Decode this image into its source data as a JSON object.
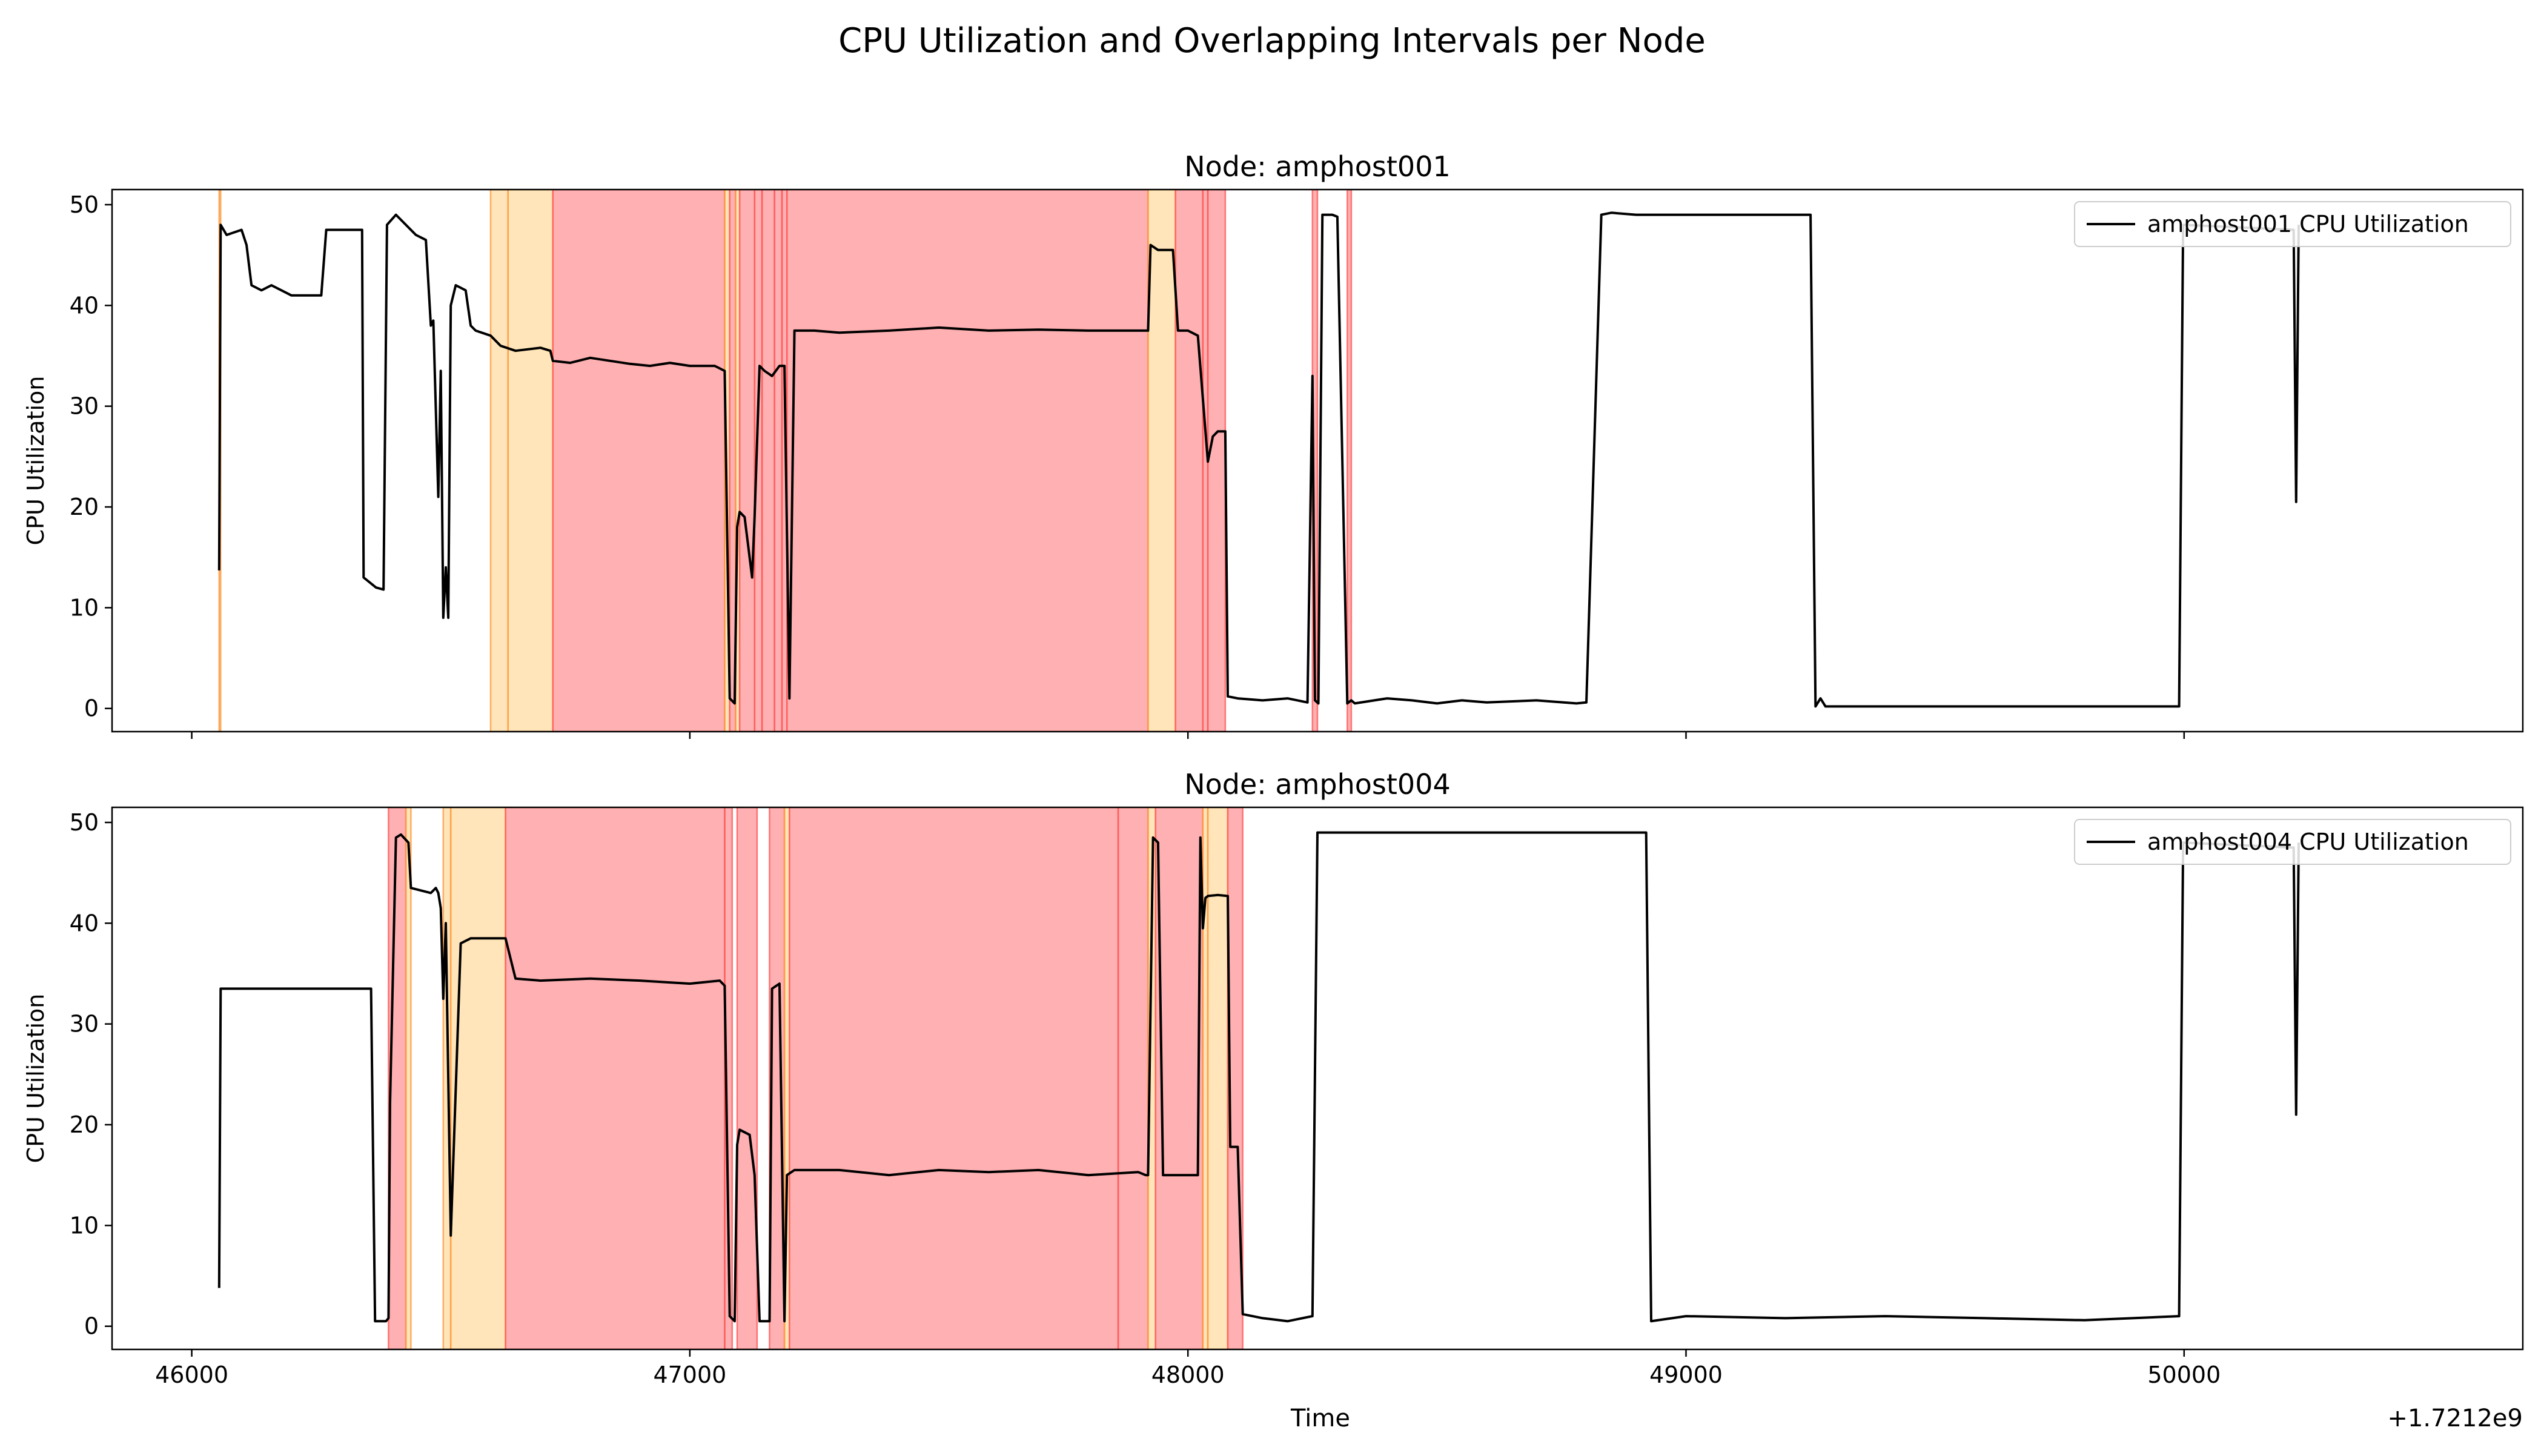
{
  "figure": {
    "title": "CPU Utilization and Overlapping Intervals per Node",
    "xlabel": "Time",
    "offset_label": "+1.7212e9"
  },
  "colors": {
    "line": "#000000",
    "highlight_line": "#0000aa",
    "red_span": "#ff6f73",
    "red_edge": "#ff5a5a",
    "orange_span": "#ffd48a",
    "orange_edge": "#ff9a40"
  },
  "chart_data": [
    {
      "type": "line",
      "title": "Node: amphost001",
      "ylabel": "CPU Utilization",
      "xlim": [
        45840,
        50680
      ],
      "ylim": [
        -2.3,
        51.5
      ],
      "xticks": [
        46000,
        47000,
        48000,
        49000,
        50000
      ],
      "yticks": [
        0,
        10,
        20,
        30,
        40,
        50
      ],
      "show_xtick_labels": false,
      "legend": {
        "label": "amphost001 CPU Utilization",
        "placement": "top-right"
      },
      "intervals": [
        {
          "start": 46055,
          "end": 46058,
          "kind": "orange"
        },
        {
          "start": 46600,
          "end": 46635,
          "kind": "orange"
        },
        {
          "start": 46635,
          "end": 46725,
          "kind": "orange"
        },
        {
          "start": 46725,
          "end": 47070,
          "kind": "red"
        },
        {
          "start": 47070,
          "end": 47080,
          "kind": "orange"
        },
        {
          "start": 47080,
          "end": 47092,
          "kind": "red"
        },
        {
          "start": 47092,
          "end": 47100,
          "kind": "orange"
        },
        {
          "start": 47100,
          "end": 47130,
          "kind": "red"
        },
        {
          "start": 47130,
          "end": 47145,
          "kind": "red"
        },
        {
          "start": 47145,
          "end": 47170,
          "kind": "red"
        },
        {
          "start": 47170,
          "end": 47185,
          "kind": "red"
        },
        {
          "start": 47185,
          "end": 47195,
          "kind": "red"
        },
        {
          "start": 47195,
          "end": 47920,
          "kind": "red"
        },
        {
          "start": 47920,
          "end": 47975,
          "kind": "orange"
        },
        {
          "start": 47975,
          "end": 48030,
          "kind": "red"
        },
        {
          "start": 48030,
          "end": 48040,
          "kind": "red"
        },
        {
          "start": 48040,
          "end": 48075,
          "kind": "red"
        },
        {
          "start": 48250,
          "end": 48260,
          "kind": "red"
        },
        {
          "start": 48320,
          "end": 48328,
          "kind": "red"
        }
      ],
      "series": [
        {
          "name": "amphost001 CPU Utilization",
          "x": [
            46055,
            46058,
            46070,
            46100,
            46110,
            46120,
            46140,
            46160,
            46200,
            46260,
            46270,
            46330,
            46342,
            46345,
            46370,
            46385,
            46392,
            46410,
            46450,
            46470,
            46480,
            46485,
            46495,
            46500,
            46505,
            46510,
            46515,
            46520,
            46530,
            46550,
            46560,
            46570,
            46600,
            46620,
            46650,
            46700,
            46720,
            46725,
            46760,
            46800,
            46840,
            46880,
            46920,
            46960,
            47000,
            47050,
            47070,
            47080,
            47090,
            47095,
            47100,
            47110,
            47125,
            47130,
            47140,
            47150,
            47165,
            47180,
            47190,
            47200,
            47210,
            47250,
            47300,
            47400,
            47500,
            47600,
            47700,
            47800,
            47900,
            47920,
            47925,
            47940,
            47970,
            47980,
            47990,
            48000,
            48020,
            48040,
            48050,
            48060,
            48075,
            48080,
            48100,
            48150,
            48200,
            48240,
            48250,
            48255,
            48262,
            48270,
            48290,
            48300,
            48320,
            48328,
            48335,
            48400,
            48450,
            48500,
            48550,
            48600,
            48700,
            48780,
            48800,
            48830,
            48850,
            48900,
            49000,
            49100,
            49200,
            49250,
            49260,
            49270,
            49280,
            49300,
            49400,
            49500,
            49600,
            49700,
            49800,
            49900,
            49990,
            49998,
            50220,
            50225,
            50230
          ],
          "y": [
            13.7,
            48,
            47,
            47.5,
            46,
            42,
            41.5,
            42,
            41,
            41,
            47.5,
            47.5,
            47.5,
            13,
            12,
            11.8,
            48,
            49,
            47,
            46.5,
            38,
            38.5,
            21,
            33.5,
            9,
            14,
            9,
            40,
            42,
            41.5,
            38,
            37.5,
            37,
            36,
            35.5,
            35.8,
            35.5,
            34.5,
            34.3,
            34.8,
            34.5,
            34.2,
            34,
            34.3,
            34,
            34,
            33.5,
            1,
            0.5,
            18,
            19.5,
            19,
            13,
            19,
            34,
            33.5,
            33,
            34,
            34,
            1,
            37.5,
            37.5,
            37.3,
            37.5,
            37.8,
            37.5,
            37.6,
            37.5,
            37.5,
            37.5,
            46,
            45.5,
            45.5,
            37.5,
            37.5,
            37.5,
            37,
            24.5,
            27,
            27.5,
            27.5,
            1.2,
            1,
            0.8,
            1,
            0.6,
            33,
            0.8,
            0.5,
            49,
            49,
            48.8,
            0.5,
            0.8,
            0.5,
            1,
            0.8,
            0.5,
            0.8,
            0.6,
            0.8,
            0.5,
            0.6,
            49,
            49.2,
            49,
            49,
            49,
            49,
            49,
            0.2,
            1,
            0.2,
            0.2,
            0.2,
            0.2,
            0.2,
            0.2,
            0.2,
            0.2,
            0.2,
            48,
            47.5,
            20.5,
            48
          ]
        }
      ]
    },
    {
      "type": "line",
      "title": "Node: amphost004",
      "ylabel": "CPU Utilization",
      "xlim": [
        45840,
        50680
      ],
      "ylim": [
        -2.3,
        51.5
      ],
      "xticks": [
        46000,
        47000,
        48000,
        49000,
        50000
      ],
      "yticks": [
        0,
        10,
        20,
        30,
        40,
        50
      ],
      "show_xtick_labels": true,
      "legend": {
        "label": "amphost004 CPU Utilization",
        "placement": "top-right"
      },
      "intervals": [
        {
          "start": 46395,
          "end": 46430,
          "kind": "red"
        },
        {
          "start": 46430,
          "end": 46440,
          "kind": "orange"
        },
        {
          "start": 46505,
          "end": 46520,
          "kind": "orange"
        },
        {
          "start": 46520,
          "end": 46630,
          "kind": "orange"
        },
        {
          "start": 46630,
          "end": 47070,
          "kind": "red"
        },
        {
          "start": 47070,
          "end": 47085,
          "kind": "red"
        },
        {
          "start": 47095,
          "end": 47135,
          "kind": "red"
        },
        {
          "start": 47160,
          "end": 47190,
          "kind": "red"
        },
        {
          "start": 47190,
          "end": 47200,
          "kind": "orange"
        },
        {
          "start": 47200,
          "end": 47860,
          "kind": "red"
        },
        {
          "start": 47860,
          "end": 47920,
          "kind": "red"
        },
        {
          "start": 47920,
          "end": 47935,
          "kind": "orange"
        },
        {
          "start": 47935,
          "end": 48030,
          "kind": "red"
        },
        {
          "start": 48030,
          "end": 48040,
          "kind": "orange"
        },
        {
          "start": 48040,
          "end": 48080,
          "kind": "orange"
        },
        {
          "start": 48080,
          "end": 48110,
          "kind": "red"
        }
      ],
      "series": [
        {
          "name": "amphost004 CPU Utilization",
          "x": [
            46055,
            46058,
            46100,
            46200,
            46300,
            46360,
            46368,
            46390,
            46395,
            46398,
            46410,
            46420,
            46435,
            46440,
            46480,
            46490,
            46495,
            46500,
            46505,
            46510,
            46520,
            46540,
            46560,
            46600,
            46630,
            46650,
            46700,
            46800,
            46900,
            47000,
            47060,
            47070,
            47080,
            47090,
            47095,
            47100,
            47120,
            47130,
            47140,
            47160,
            47165,
            47180,
            47190,
            47195,
            47210,
            47300,
            47400,
            47500,
            47600,
            47700,
            47800,
            47900,
            47915,
            47920,
            47930,
            47940,
            47950,
            48000,
            48020,
            48025,
            48030,
            48035,
            48040,
            48060,
            48080,
            48085,
            48100,
            48110,
            48150,
            48200,
            48250,
            48260,
            48265,
            48300,
            48500,
            48700,
            48920,
            48930,
            49000,
            49200,
            49400,
            49600,
            49800,
            49990,
            49998,
            50220,
            50225,
            50230
          ],
          "y": [
            3.8,
            33.5,
            33.5,
            33.5,
            33.5,
            33.5,
            0.5,
            0.5,
            0.8,
            22,
            48.5,
            48.8,
            48,
            43.5,
            43,
            43.5,
            43,
            41.5,
            32.5,
            40,
            9,
            38,
            38.5,
            38.5,
            38.5,
            34.5,
            34.3,
            34.5,
            34.3,
            34,
            34.3,
            33.8,
            1,
            0.5,
            18,
            19.5,
            19,
            15,
            0.5,
            0.5,
            33.5,
            34,
            0.5,
            15,
            15.5,
            15.5,
            15,
            15.5,
            15.3,
            15.5,
            15,
            15.3,
            15,
            15,
            48.5,
            48,
            15,
            15,
            15,
            48.5,
            39.5,
            42.5,
            42.7,
            42.8,
            42.7,
            17.8,
            17.8,
            1.2,
            0.8,
            0.5,
            1,
            49,
            49,
            49,
            49,
            49,
            49,
            0.5,
            1,
            0.8,
            1,
            0.8,
            0.6,
            1,
            48,
            47.5,
            21,
            48
          ]
        }
      ]
    }
  ]
}
